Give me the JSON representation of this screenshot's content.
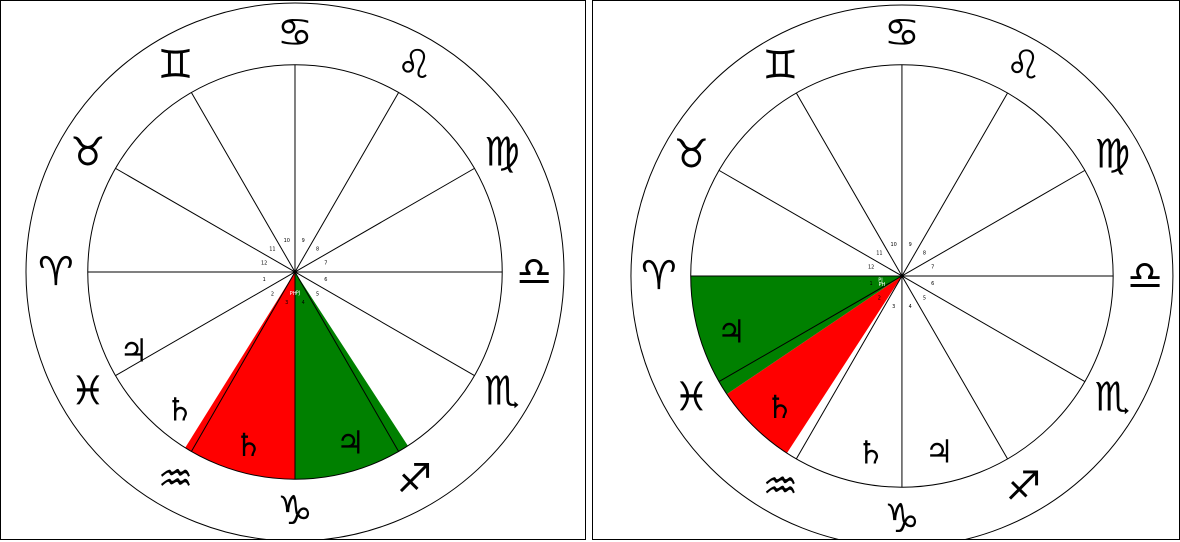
{
  "colors": {
    "red": "#ff0000",
    "green": "#008000",
    "line": "#000000",
    "paper": "#ffffff"
  },
  "house_numbers": [
    "1",
    "2",
    "3",
    "4",
    "5",
    "6",
    "7",
    "8",
    "9",
    "10",
    "11",
    "12"
  ],
  "charts": [
    {
      "signs": [
        {
          "name": "capricorn",
          "glyph": "♑",
          "lon": 270
        },
        {
          "name": "sagittarius",
          "glyph": "♐",
          "lon": 240
        },
        {
          "name": "scorpio",
          "glyph": "♏",
          "lon": 210
        },
        {
          "name": "libra",
          "glyph": "♎",
          "lon": 180
        },
        {
          "name": "virgo",
          "glyph": "♍",
          "lon": 150
        },
        {
          "name": "leo",
          "glyph": "♌",
          "lon": 120
        },
        {
          "name": "cancer",
          "glyph": "♋",
          "lon": 90
        },
        {
          "name": "gemini",
          "glyph": "♊",
          "lon": 60
        },
        {
          "name": "taurus",
          "glyph": "♉",
          "lon": 30
        },
        {
          "name": "aries",
          "glyph": "♈",
          "lon": 0
        },
        {
          "name": "pisces",
          "glyph": "♓",
          "lon": 330
        },
        {
          "name": "aquarius",
          "glyph": "♒",
          "lon": 300
        }
      ],
      "sectors": [
        {
          "name": "red-sector",
          "color": "red",
          "from": 270,
          "to": 302
        },
        {
          "name": "green-sector",
          "color": "green",
          "from": 237,
          "to": 270
        }
      ],
      "planets": [
        {
          "name": "saturn",
          "glyph": "♄",
          "lon": 285
        },
        {
          "name": "jupiter",
          "glyph": "♃",
          "lon": 252
        },
        {
          "name": "saturn",
          "glyph": "♄",
          "lon": 310
        },
        {
          "name": "jupiter",
          "glyph": "♃",
          "lon": 334
        }
      ],
      "house_labels": [
        {
          "name": "house-label-sector-red",
          "text": "PH",
          "lon": 275,
          "white": true
        },
        {
          "name": "house-label-sector-green",
          "text": "PJ",
          "lon": 262,
          "white": true
        }
      ]
    },
    {
      "signs": [
        {
          "name": "capricorn",
          "glyph": "♑",
          "lon": 270
        },
        {
          "name": "sagittarius",
          "glyph": "♐",
          "lon": 240
        },
        {
          "name": "scorpio",
          "glyph": "♏",
          "lon": 210
        },
        {
          "name": "libra",
          "glyph": "♎",
          "lon": 180
        },
        {
          "name": "virgo",
          "glyph": "♍",
          "lon": 150
        },
        {
          "name": "leo",
          "glyph": "♌",
          "lon": 120
        },
        {
          "name": "cancer",
          "glyph": "♋",
          "lon": 90
        },
        {
          "name": "gemini",
          "glyph": "♊",
          "lon": 60
        },
        {
          "name": "taurus",
          "glyph": "♉",
          "lon": 30
        },
        {
          "name": "aries",
          "glyph": "♈",
          "lon": 0
        },
        {
          "name": "pisces",
          "glyph": "♓",
          "lon": 330
        },
        {
          "name": "aquarius",
          "glyph": "♒",
          "lon": 300
        }
      ],
      "sectors": [
        {
          "name": "red-sector",
          "color": "red",
          "from": 326,
          "to": 303
        },
        {
          "name": "green-sector",
          "color": "green",
          "from": 360,
          "to": 326
        }
      ],
      "planets": [
        {
          "name": "saturn",
          "glyph": "♄",
          "lon": 280
        },
        {
          "name": "jupiter",
          "glyph": "♃",
          "lon": 258
        },
        {
          "name": "saturn",
          "glyph": "♄",
          "lon": 313
        },
        {
          "name": "jupiter",
          "glyph": "♃",
          "lon": 342
        }
      ],
      "house_labels": [
        {
          "name": "house-label-sector-red",
          "text": "PH",
          "lon": 336,
          "white": true
        },
        {
          "name": "house-label-sector-green",
          "text": "PJ",
          "lon": 348,
          "white": true
        }
      ]
    }
  ]
}
